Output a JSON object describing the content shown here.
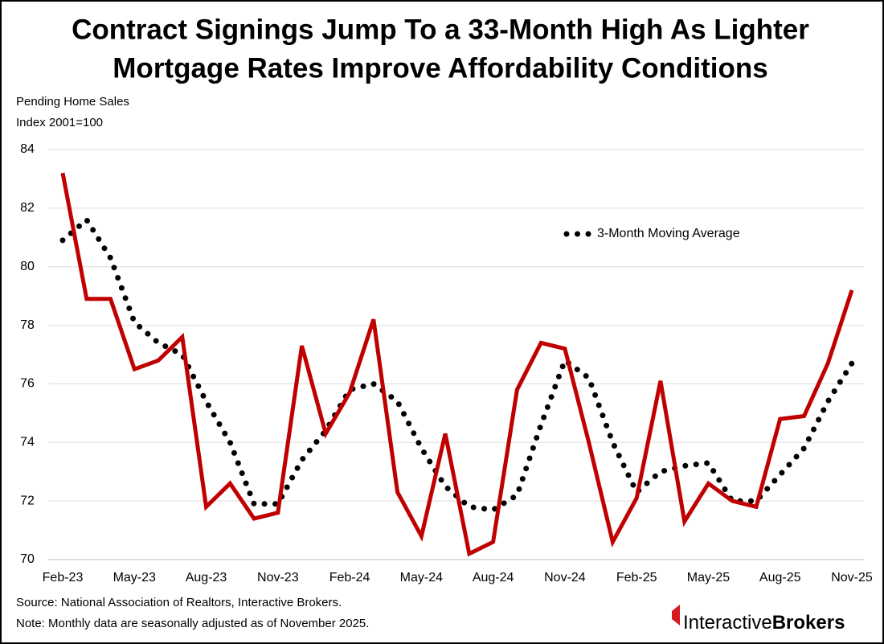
{
  "chart_data": {
    "type": "line",
    "title": [
      "Contract Signings Jump To a 33-Month High As Lighter",
      "Mortgage Rates Improve Affordability Conditions"
    ],
    "y_label": [
      "Pending Home Sales",
      "Index 2001=100"
    ],
    "categories": [
      "Feb-23",
      null,
      null,
      "May-23",
      null,
      null,
      "Aug-23",
      null,
      null,
      "Nov-23",
      null,
      null,
      "Feb-24",
      null,
      null,
      "May-24",
      null,
      null,
      "Aug-24",
      null,
      null,
      "Nov-24",
      null,
      null,
      "Feb-25",
      null,
      null,
      "May-25",
      null,
      null,
      "Aug-25",
      null,
      null,
      "Nov-25"
    ],
    "series": [
      {
        "color": "#c00000",
        "style": "solid",
        "values": [
          83.2,
          78.9,
          78.9,
          76.5,
          76.8,
          77.6,
          71.8,
          72.6,
          71.4,
          71.6,
          77.3,
          74.3,
          75.7,
          78.2,
          72.3,
          70.8,
          74.3,
          70.2,
          70.6,
          75.8,
          77.4,
          77.2,
          74.0,
          70.6,
          72.1,
          76.1,
          71.3,
          72.6,
          72.0,
          71.8,
          74.8,
          74.9,
          76.7,
          79.2
        ]
      },
      {
        "name": "3-Month Moving Average",
        "color": "#000000",
        "style": "dotted",
        "values": [
          80.9,
          81.6,
          80.3,
          78.1,
          77.4,
          77.0,
          75.4,
          74.0,
          71.9,
          71.9,
          73.4,
          74.4,
          75.8,
          76.0,
          75.4,
          73.8,
          72.5,
          71.8,
          71.7,
          72.2,
          74.6,
          76.8,
          76.2,
          74.0,
          72.3,
          73.0,
          73.2,
          73.3,
          72.0,
          72.0,
          72.9,
          73.8,
          75.4,
          76.7
        ]
      }
    ],
    "ylim": [
      70,
      84
    ],
    "yticks": [
      70,
      72,
      74,
      76,
      78,
      80,
      82,
      84
    ],
    "grid": true,
    "source": "Source: National Association of Realtors, Interactive Brokers.",
    "note": "Note: Monthly data are seasonally adjusted as of November 2025."
  },
  "brand": [
    "Interactive",
    "Brokers"
  ]
}
